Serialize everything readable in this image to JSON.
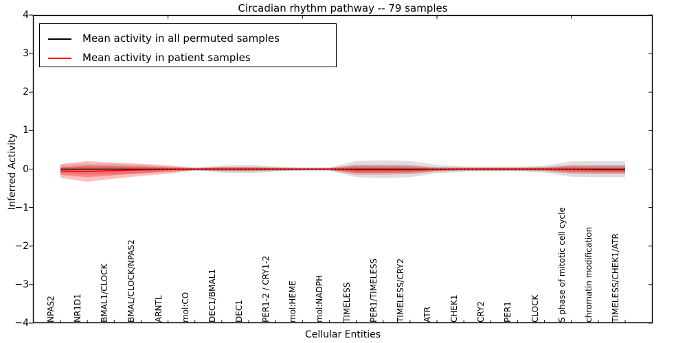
{
  "chart_data": {
    "type": "line",
    "title": "Circadian rhythm pathway -- 79 samples",
    "xlabel": "Cellular Entities",
    "ylabel": "Inferred Activity",
    "ylim": [
      -4,
      4
    ],
    "yticks": [
      4,
      3,
      2,
      1,
      0,
      -1,
      -2,
      -3,
      -4
    ],
    "grid": false,
    "legend_position": "upper left",
    "top_tick_indices": [
      4,
      9,
      14,
      19
    ],
    "categories": [
      "NPAS2",
      "NR1D1",
      "BMAL1/CLOCK",
      "BMAL/CLOCK/NPAS2",
      "ARNTL",
      "mol:CO",
      "DEC1/BMAL1",
      "DEC1",
      "PER1-2 / CRY1-2",
      "mol:HEME",
      "mol:NADPH",
      "TIMELESS",
      "PER1/TIMELESS",
      "TIMELESS/CRY2",
      "ATR",
      "CHEK1",
      "CRY2",
      "PER1",
      "CLOCK",
      "S phase of mitotic cell cycle",
      "chromatin modification",
      "TIMELESS/CHEK1/ATR"
    ],
    "series": [
      {
        "name": "Mean activity in all permuted samples",
        "color": "#000000",
        "band_outer_color": "rgba(0,0,0,0.13)",
        "band_inner_color": "rgba(0,0,0,0.12)",
        "values": [
          0,
          0,
          0,
          0,
          0,
          0,
          0,
          0,
          0,
          0,
          0,
          0,
          0,
          0,
          0,
          0,
          0,
          0,
          0,
          0,
          0,
          0
        ],
        "band_outer": [
          0.11,
          0.14,
          0.14,
          0.11,
          0.07,
          0.04,
          0.09,
          0.11,
          0.07,
          0.04,
          0.04,
          0.21,
          0.23,
          0.21,
          0.11,
          0.07,
          0.06,
          0.06,
          0.09,
          0.2,
          0.21,
          0.21
        ],
        "band_inner": [
          0.05,
          0.065,
          0.065,
          0.05,
          0.03,
          0.02,
          0.04,
          0.05,
          0.03,
          0.02,
          0.02,
          0.1,
          0.1,
          0.1,
          0.05,
          0.03,
          0.03,
          0.03,
          0.04,
          0.09,
          0.1,
          0.1
        ]
      },
      {
        "name": "Mean activity in patient samples",
        "color": "#ff0000",
        "band_outer_color": "rgba(255,0,0,0.25)",
        "band_inner_color": "rgba(255,0,0,0.30)",
        "values": [
          -0.05,
          -0.06,
          -0.04,
          -0.02,
          -0.01,
          0,
          0,
          0,
          0,
          0,
          0,
          -0.02,
          -0.02,
          -0.02,
          -0.01,
          0,
          0,
          0,
          0,
          -0.01,
          -0.02,
          -0.02
        ],
        "band_outer": [
          0.18,
          0.27,
          0.21,
          0.16,
          0.11,
          0.035,
          0.06,
          0.06,
          0.045,
          0.035,
          0.035,
          0.125,
          0.125,
          0.11,
          0.055,
          0.045,
          0.045,
          0.045,
          0.055,
          0.11,
          0.11,
          0.11
        ],
        "band_inner": [
          0.1,
          0.15,
          0.12,
          0.09,
          0.06,
          0.02,
          0.035,
          0.035,
          0.025,
          0.02,
          0.02,
          0.07,
          0.07,
          0.06,
          0.03,
          0.025,
          0.025,
          0.025,
          0.03,
          0.06,
          0.06,
          0.06
        ]
      }
    ]
  },
  "legend": {
    "entries": [
      {
        "label": "Mean activity in all permuted samples",
        "color": "#000000"
      },
      {
        "label": "Mean activity in patient samples",
        "color": "#ff0000"
      }
    ]
  },
  "colors": {
    "axis": "#000000",
    "background": "#ffffff"
  }
}
